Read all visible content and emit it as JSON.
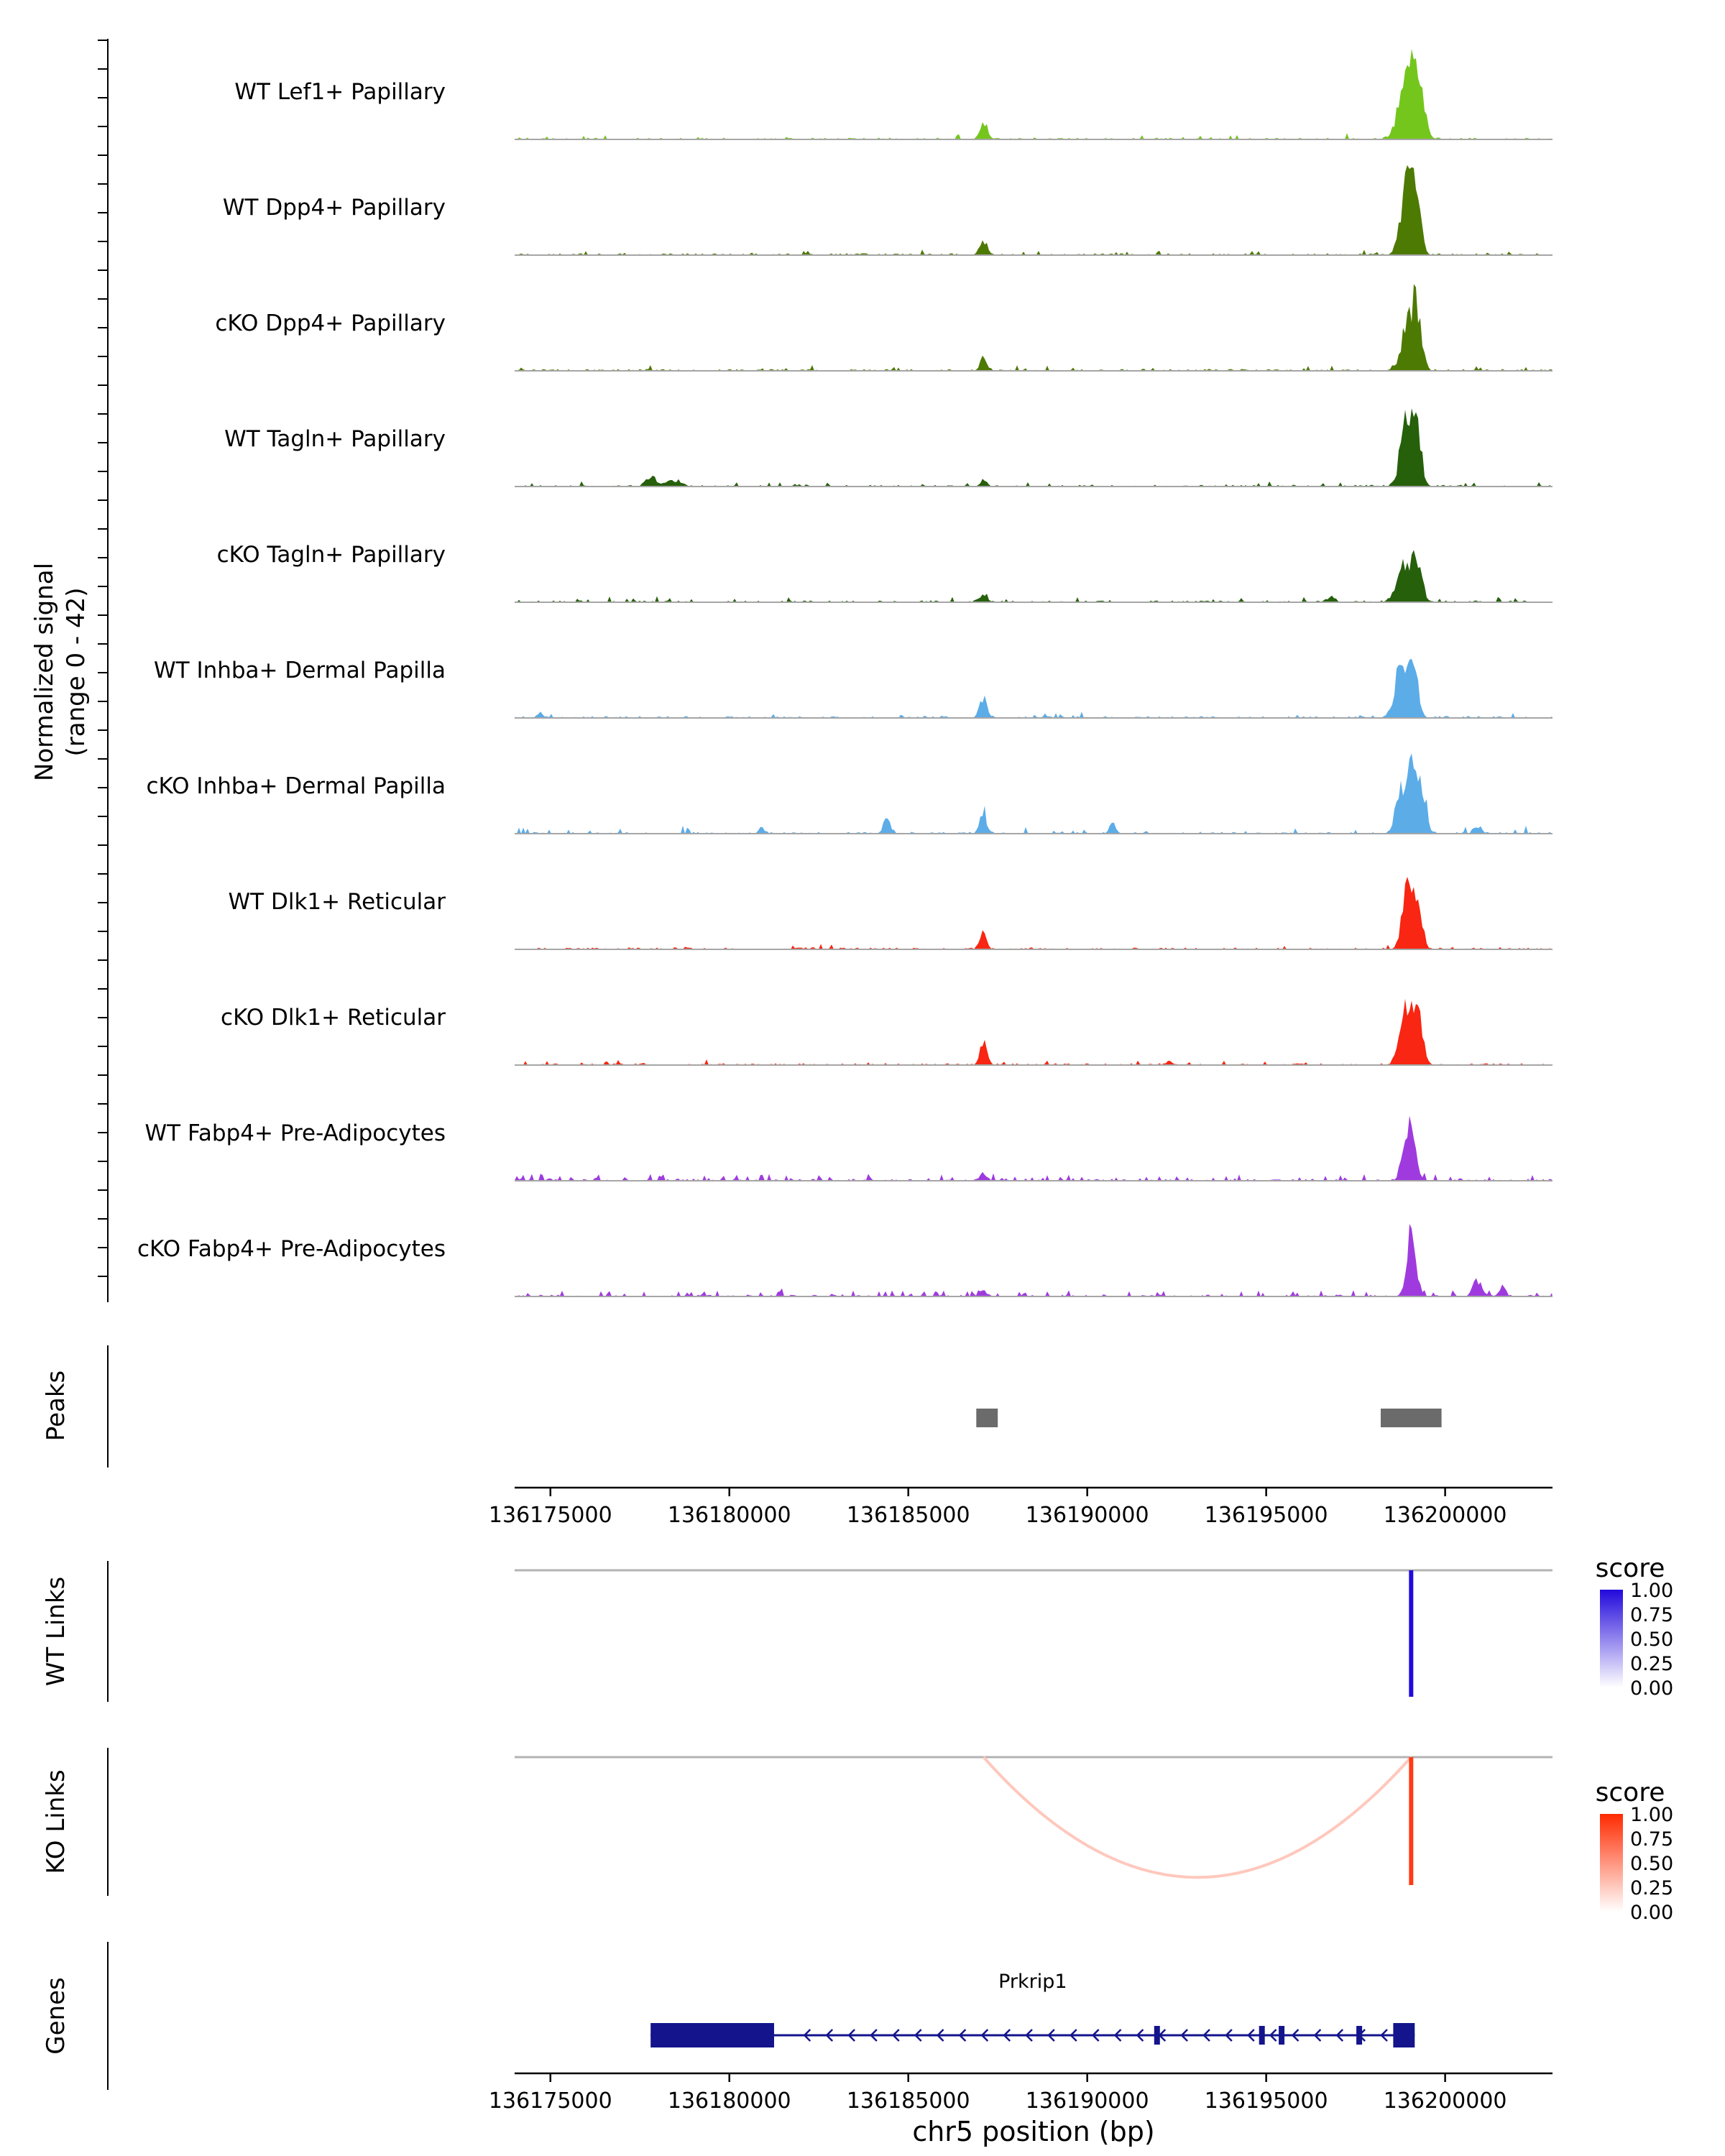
{
  "chart_data": {
    "type": "area",
    "subtype": "genome-coverage-tracks",
    "xlabel": "chr5 position (bp)",
    "ylabel_line1": "Normalized signal",
    "ylabel_line2": "(range 0 - 42)",
    "signal_range": [
      0,
      42
    ],
    "sections": {
      "peaks": "Peaks",
      "wt_links": "WT Links",
      "ko_links": "KO Links",
      "genes": "Genes"
    },
    "xlim": [
      136174000,
      136203000
    ],
    "x_ticks": [
      136175000,
      136180000,
      136185000,
      136190000,
      136195000,
      136200000
    ],
    "tracks": [
      {
        "label": "WT Lef1+ Papillary",
        "color": "#74C61C",
        "peaks": [
          [
            136198800,
            0.5,
            180
          ],
          [
            136199050,
            0.95,
            140
          ],
          [
            136199300,
            0.55,
            150
          ],
          [
            136187100,
            0.26,
            100
          ]
        ],
        "noise": [
          0.05,
          0.05
        ]
      },
      {
        "label": "WT Dpp4+ Papillary",
        "color": "#4D7A02",
        "peaks": [
          [
            136198900,
            0.8,
            160
          ],
          [
            136199150,
            0.95,
            140
          ],
          [
            136187100,
            0.22,
            100
          ]
        ],
        "noise": [
          0.06,
          0.05
        ]
      },
      {
        "label": "cKO Dpp4+ Papillary",
        "color": "#4D7A02",
        "peaks": [
          [
            136198950,
            0.6,
            170
          ],
          [
            136199200,
            0.72,
            140
          ],
          [
            136187100,
            0.16,
            100
          ]
        ],
        "noise": [
          0.07,
          0.05
        ]
      },
      {
        "label": "WT Tagln+ Papillary",
        "color": "#26600B",
        "peaks": [
          [
            136198900,
            0.95,
            150
          ],
          [
            136199200,
            0.75,
            130
          ],
          [
            136187100,
            0.07,
            90
          ],
          [
            136177800,
            0.14,
            120
          ],
          [
            136178400,
            0.09,
            200
          ]
        ],
        "noise": [
          0.08,
          0.05
        ]
      },
      {
        "label": "cKO Tagln+ Papillary",
        "color": "#26600B",
        "peaks": [
          [
            136198850,
            0.45,
            200
          ],
          [
            136199200,
            0.52,
            140
          ],
          [
            136187100,
            0.13,
            100
          ],
          [
            136196800,
            0.07,
            120
          ]
        ],
        "noise": [
          0.09,
          0.06
        ]
      },
      {
        "label": "WT Inhba+ Dermal Papilla",
        "color": "#5CACE8",
        "peaks": [
          [
            136198750,
            0.7,
            150
          ],
          [
            136199100,
            0.88,
            130
          ],
          [
            136187100,
            0.3,
            100
          ],
          [
            136174700,
            0.08,
            80
          ]
        ],
        "noise": [
          0.06,
          0.05
        ]
      },
      {
        "label": "cKO Inhba+ Dermal Papilla",
        "color": "#5CACE8",
        "peaks": [
          [
            136198750,
            0.6,
            130
          ],
          [
            136199050,
            0.92,
            110
          ],
          [
            136199350,
            0.68,
            120
          ],
          [
            136187100,
            0.26,
            90
          ],
          [
            136184400,
            0.2,
            100
          ],
          [
            136190700,
            0.14,
            80
          ],
          [
            136180900,
            0.08,
            80
          ],
          [
            136200900,
            0.1,
            100
          ]
        ],
        "noise": [
          0.08,
          0.07
        ]
      },
      {
        "label": "WT Dlk1+ Reticular",
        "color": "#F82612",
        "peaks": [
          [
            136198950,
            0.9,
            140
          ],
          [
            136199250,
            0.6,
            120
          ],
          [
            136187100,
            0.25,
            90
          ]
        ],
        "noise": [
          0.05,
          0.04
        ]
      },
      {
        "label": "cKO Dlk1+ Reticular",
        "color": "#F82612",
        "peaks": [
          [
            136198900,
            0.78,
            160
          ],
          [
            136199250,
            0.65,
            130
          ],
          [
            136187100,
            0.29,
            90
          ],
          [
            136192300,
            0.05,
            100
          ]
        ],
        "noise": [
          0.06,
          0.05
        ]
      },
      {
        "label": "WT Fabp4+ Pre-Adipocytes",
        "color": "#9F3BDE",
        "peaks": [
          [
            136199000,
            0.72,
            150
          ],
          [
            136187100,
            0.1,
            90
          ]
        ],
        "noise": [
          0.22,
          0.07
        ]
      },
      {
        "label": "cKO Fabp4+ Pre-Adipocytes",
        "color": "#9F3BDE",
        "peaks": [
          [
            136199050,
            0.85,
            130
          ],
          [
            136200900,
            0.2,
            120
          ],
          [
            136187100,
            0.08,
            90
          ],
          [
            136201600,
            0.1,
            100
          ]
        ],
        "noise": [
          0.16,
          0.07
        ]
      }
    ],
    "peaks_track": {
      "color": "#6B6B6B",
      "intervals": [
        [
          136186900,
          136187500
        ],
        [
          136198200,
          136199900
        ]
      ]
    },
    "wt_links": {
      "legend": {
        "title": "score",
        "ticks": [
          "1.00",
          "0.75",
          "0.50",
          "0.25",
          "0.00"
        ],
        "high_color": "#2209DC"
      },
      "links": [
        {
          "x1": 136198900,
          "x2": 136199200,
          "score": 1.0
        }
      ]
    },
    "ko_links": {
      "legend": {
        "title": "score",
        "ticks": [
          "1.00",
          "0.75",
          "0.50",
          "0.25",
          "0.00"
        ],
        "high_color": "#FF2A00"
      },
      "links": [
        {
          "x1": 136187100,
          "x2": 136199050,
          "score": 0.26
        },
        {
          "x1": 136198950,
          "x2": 136199150,
          "score": 0.92
        }
      ]
    },
    "genes": [
      {
        "name": "Prkrip1",
        "strand": "-",
        "start": 136177800,
        "end": 136199150,
        "thick": [
          [
            136177800,
            136181250
          ],
          [
            136198550,
            136199150
          ]
        ],
        "exon_marks": [
          136191950,
          136194880,
          136195430,
          136197600
        ],
        "color": "#14148C"
      }
    ]
  }
}
